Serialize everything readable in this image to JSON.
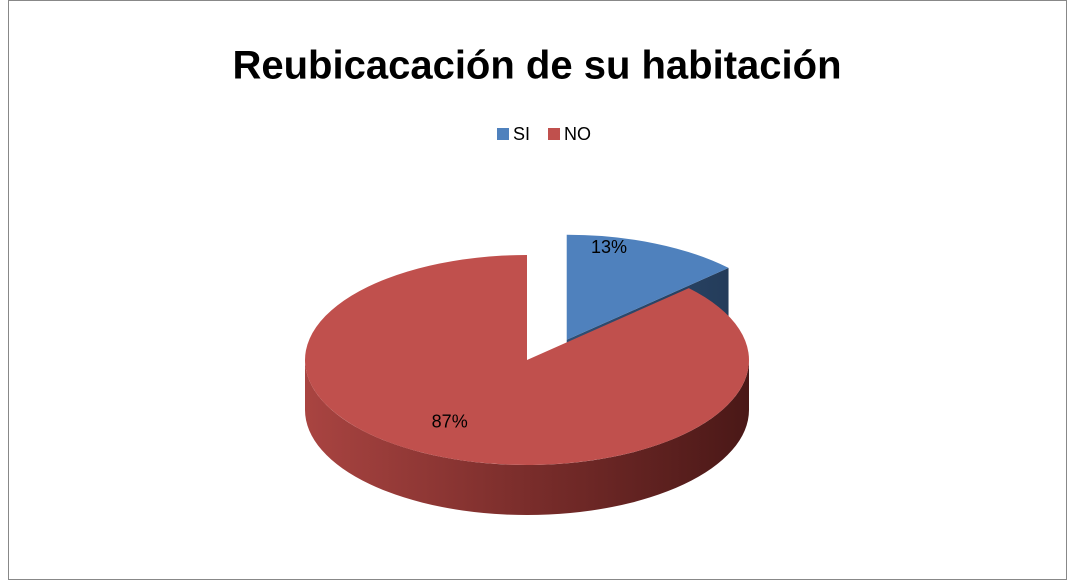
{
  "chart_data": {
    "type": "pie",
    "title": "Reubicacación de su habitación",
    "categories": [
      "SI",
      "NO"
    ],
    "values": [
      13,
      87
    ],
    "value_labels": [
      "13%",
      "87%"
    ],
    "colors": [
      "#4f81bd",
      "#c0504d"
    ],
    "legend": "top"
  }
}
